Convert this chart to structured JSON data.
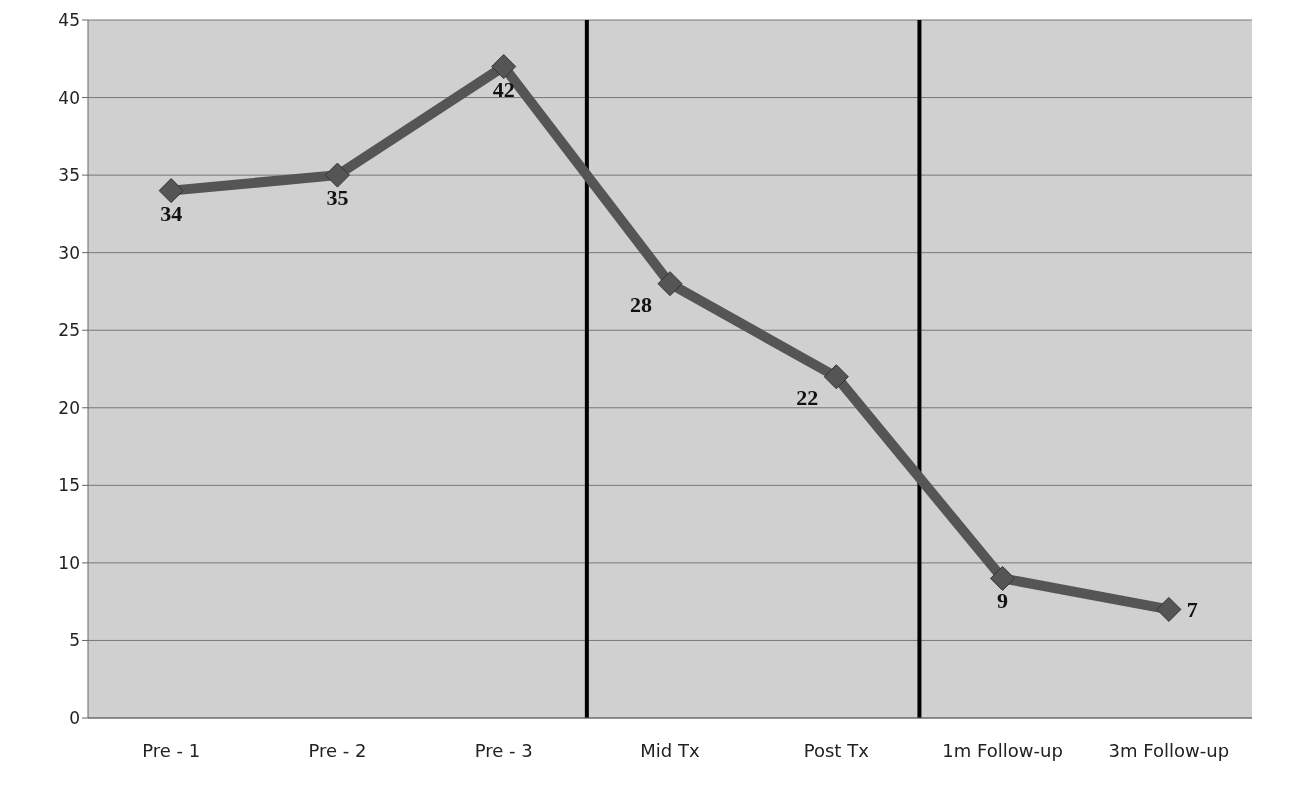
{
  "chart_data": {
    "type": "line",
    "categories": [
      "Pre - 1",
      "Pre -  2",
      "Pre - 3",
      "Mid Tx",
      "Post Tx",
      "1m Follow-up",
      "3m Follow-up"
    ],
    "series": [
      {
        "color": "#555555",
        "values": [
          34,
          35,
          42,
          28,
          22,
          9,
          7
        ]
      }
    ],
    "ylim": [
      0,
      45
    ],
    "yticks": [
      0,
      5,
      10,
      15,
      20,
      25,
      30,
      35,
      40,
      45
    ],
    "grid": "y",
    "legend": false,
    "marker": "diamond",
    "line_style": "solid",
    "data_labels": true
  }
}
